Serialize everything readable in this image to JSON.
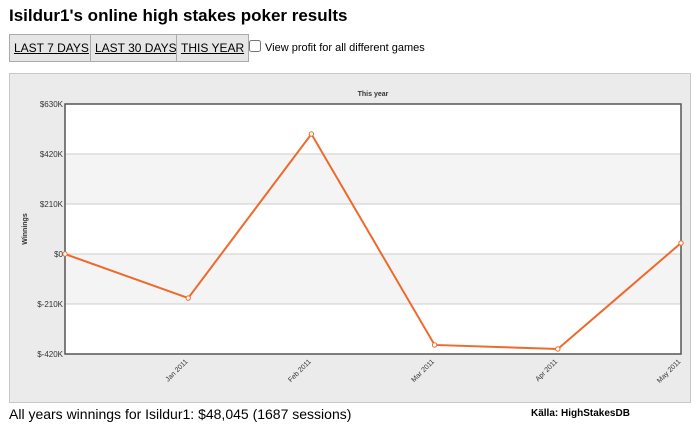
{
  "header": {
    "title": "Isildur1's online high stakes poker results"
  },
  "controls": {
    "buttons": [
      "LAST 7 DAYS",
      "LAST 30 DAYS",
      "THIS YEAR"
    ],
    "checkbox_label": "View profit for all different games"
  },
  "chart_data": {
    "type": "line",
    "title": "This year",
    "y_label": "Winnings",
    "categories": [
      null,
      "Jan 2011",
      "Feb 2011",
      "Mar 2011",
      "Apr 2011",
      "May 2011"
    ],
    "series": [
      {
        "name": "Winnings",
        "color": "#ee6a2c",
        "values": [
          0,
          -185000,
          504000,
          -382000,
          -399000,
          46000
        ]
      }
    ],
    "ylim": [
      -420000,
      630000
    ],
    "yticks": [
      {
        "value": -420000,
        "label": "$-420K"
      },
      {
        "value": -210000,
        "label": "$-210K"
      },
      {
        "value": 0,
        "label": "$0"
      },
      {
        "value": 210000,
        "label": "$210K"
      },
      {
        "value": 420000,
        "label": "$420K"
      },
      {
        "value": 630000,
        "label": "$630K"
      }
    ],
    "grid": true
  },
  "footer": {
    "summary": "All years winnings for Isildur1: $48,045 (1687 sessions)",
    "source": "Källa: HighStakesDB"
  }
}
